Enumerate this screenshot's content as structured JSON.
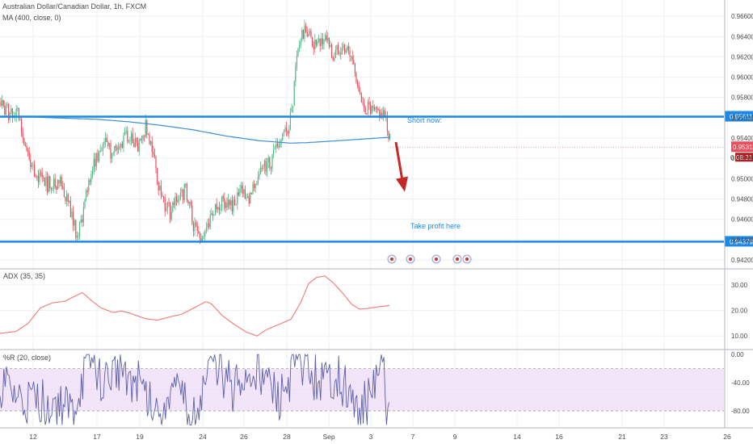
{
  "header": {
    "title": "Australian Dollar/Canadian Dollar, 1h, FXCM",
    "indicator": "MA (400, close, 0)"
  },
  "colors": {
    "up": "#53b987",
    "down": "#eb4d5c",
    "ma": "#3c8fd6",
    "hline": "#1e88e5",
    "arrow": "#c62828",
    "adx": "#ef7a78",
    "wr": "#5b5ea8",
    "wr_band": "#f3e5f9",
    "grid": "#eef0f4",
    "axis_text": "#4a4a4a",
    "annotation_text": "#1e88e5",
    "separator": "#b2b5be"
  },
  "chart_data": [
    {
      "type": "candlestick",
      "title": "Australian Dollar/Canadian Dollar, 1h, FXCM",
      "y_ticks": [
        "0.96600",
        "0.96400",
        "0.96200",
        "0.96000",
        "0.95800",
        "0.95600",
        "0.95400",
        "0.95200",
        "0.95000",
        "0.94800",
        "0.94600",
        "0.94400",
        "0.94200"
      ],
      "y_tick_values": [
        0.966,
        0.964,
        0.962,
        0.96,
        0.958,
        0.956,
        0.954,
        0.952,
        0.95,
        0.948,
        0.946,
        0.944,
        0.942
      ],
      "ylim": [
        0.9412,
        0.9676
      ],
      "x_ticks": [
        "12",
        "17",
        "19",
        "24",
        "26",
        "28",
        "Sep",
        "3",
        "7",
        "9",
        "14",
        "16",
        "21",
        "23",
        "26"
      ],
      "price_path": [
        [
          0,
          0.9576
        ],
        [
          4,
          0.9569
        ],
        [
          10,
          0.9566
        ],
        [
          20,
          0.9568
        ],
        [
          30,
          0.954
        ],
        [
          38,
          0.9516
        ],
        [
          48,
          0.9502
        ],
        [
          58,
          0.9494
        ],
        [
          68,
          0.9497
        ],
        [
          78,
          0.9494
        ],
        [
          86,
          0.947
        ],
        [
          95,
          0.9443
        ],
        [
          105,
          0.9473
        ],
        [
          113,
          0.951
        ],
        [
          122,
          0.9526
        ],
        [
          130,
          0.9534
        ],
        [
          140,
          0.9522
        ],
        [
          150,
          0.9536
        ],
        [
          160,
          0.9545
        ],
        [
          170,
          0.9533
        ],
        [
          180,
          0.9552
        ],
        [
          188,
          0.9529
        ],
        [
          196,
          0.9495
        ],
        [
          204,
          0.9474
        ],
        [
          212,
          0.9466
        ],
        [
          220,
          0.948
        ],
        [
          230,
          0.949
        ],
        [
          238,
          0.9459
        ],
        [
          246,
          0.944
        ],
        [
          254,
          0.9447
        ],
        [
          262,
          0.9462
        ],
        [
          270,
          0.9476
        ],
        [
          280,
          0.9475
        ],
        [
          290,
          0.9474
        ],
        [
          298,
          0.9486
        ],
        [
          308,
          0.9482
        ],
        [
          316,
          0.9501
        ],
        [
          326,
          0.9509
        ],
        [
          336,
          0.9518
        ],
        [
          345,
          0.9533
        ],
        [
          355,
          0.9545
        ],
        [
          362,
          0.957
        ],
        [
          367,
          0.9618
        ],
        [
          373,
          0.964
        ],
        [
          380,
          0.9645
        ],
        [
          388,
          0.9632
        ],
        [
          396,
          0.963
        ],
        [
          404,
          0.9641
        ],
        [
          412,
          0.9618
        ],
        [
          420,
          0.963
        ],
        [
          428,
          0.9628
        ],
        [
          436,
          0.9617
        ],
        [
          443,
          0.9593
        ],
        [
          448,
          0.9568
        ],
        [
          455,
          0.957
        ],
        [
          462,
          0.9563
        ],
        [
          470,
          0.9565
        ],
        [
          476,
          0.956
        ],
        [
          483,
          0.9538
        ]
      ],
      "ma_series": {
        "name": "MA (400, close, 0)",
        "path": [
          [
            0,
            0.9561
          ],
          [
            40,
            0.95608
          ],
          [
            80,
            0.95595
          ],
          [
            120,
            0.95585
          ],
          [
            160,
            0.9556
          ],
          [
            200,
            0.95525
          ],
          [
            240,
            0.9548
          ],
          [
            280,
            0.9542
          ],
          [
            320,
            0.95375
          ],
          [
            360,
            0.9535
          ],
          [
            380,
            0.95355
          ],
          [
            420,
            0.95375
          ],
          [
            483,
            0.95408
          ]
        ]
      },
      "last_price": "0.95311",
      "countdown": "08:31",
      "horizontal_lines": [
        {
          "value": 0.95611,
          "label": "0.95611",
          "note": "Short now:"
        },
        {
          "value": 0.94379,
          "label": "0.94379",
          "note": "Take profit here"
        }
      ],
      "arrow": {
        "from": [
          490,
          0.9536
        ],
        "to": [
          500,
          0.9487
        ]
      },
      "event_markers": [
        485,
        508,
        540,
        566,
        578
      ]
    },
    {
      "type": "line",
      "title": "ADX (35, 35)",
      "y_ticks": [
        "30.00",
        "20.00",
        "10.00"
      ],
      "y_tick_values": [
        30,
        20,
        10
      ],
      "ylim": [
        5,
        36
      ],
      "series": [
        {
          "name": "ADX (35, 35)",
          "path": [
            [
              0,
              11
            ],
            [
              20,
              11.8
            ],
            [
              35,
              15
            ],
            [
              50,
              21
            ],
            [
              65,
              23
            ],
            [
              80,
              23.6
            ],
            [
              92,
              25.5
            ],
            [
              102,
              27
            ],
            [
              112,
              24.2
            ],
            [
              125,
              21
            ],
            [
              140,
              19.2
            ],
            [
              150,
              19.8
            ],
            [
              160,
              19
            ],
            [
              180,
              16.8
            ],
            [
              195,
              16.2
            ],
            [
              210,
              17.5
            ],
            [
              225,
              18.5
            ],
            [
              240,
              21
            ],
            [
              255,
              23.5
            ],
            [
              262,
              22.5
            ],
            [
              275,
              18
            ],
            [
              290,
              14.5
            ],
            [
              305,
              11.5
            ],
            [
              318,
              10
            ],
            [
              330,
              12.5
            ],
            [
              345,
              14.5
            ],
            [
              360,
              16.5
            ],
            [
              372,
              23
            ],
            [
              382,
              30.5
            ],
            [
              392,
              33
            ],
            [
              402,
              33.5
            ],
            [
              412,
              31
            ],
            [
              425,
              26.5
            ],
            [
              435,
              22.5
            ],
            [
              445,
              20.5
            ],
            [
              455,
              20.8
            ],
            [
              470,
              21.5
            ],
            [
              483,
              22
            ]
          ]
        }
      ]
    },
    {
      "type": "line",
      "title": "%R (20, close)",
      "y_ticks": [
        "0.00",
        "-40.00",
        "-80.00"
      ],
      "y_tick_values": [
        0,
        -40,
        -80
      ],
      "ylim": [
        -103,
        6
      ],
      "band": [
        -20,
        -80
      ],
      "mid_line": -50,
      "series": [
        {
          "name": "%R (20, close)",
          "seed": 7,
          "anchors": [
            [
              0,
              -45
            ],
            [
              30,
              -70
            ],
            [
              60,
              -65
            ],
            [
              90,
              -85
            ],
            [
              110,
              -10
            ],
            [
              130,
              -40
            ],
            [
              150,
              -20
            ],
            [
              170,
              -40
            ],
            [
              195,
              -80
            ],
            [
              210,
              -50
            ],
            [
              240,
              -85
            ],
            [
              265,
              -10
            ],
            [
              290,
              -50
            ],
            [
              320,
              -20
            ],
            [
              345,
              -70
            ],
            [
              370,
              -10
            ],
            [
              400,
              -45
            ],
            [
              420,
              -30
            ],
            [
              440,
              -85
            ],
            [
              460,
              -60
            ],
            [
              473,
              -5
            ],
            [
              478,
              -80
            ],
            [
              483,
              -90
            ]
          ]
        }
      ]
    }
  ]
}
